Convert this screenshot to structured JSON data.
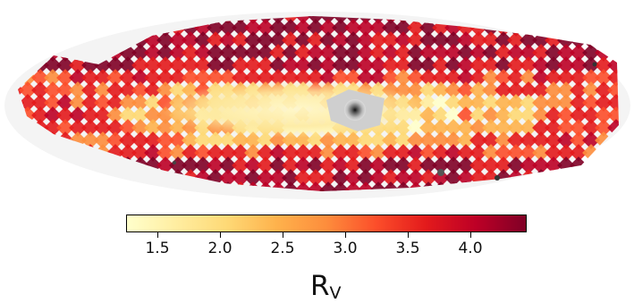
{
  "figure": {
    "colorbar": {
      "label_main": "R",
      "label_sub": "V",
      "min": 1.25,
      "max": 4.45,
      "ticks": [
        "1.5",
        "2.0",
        "2.5",
        "3.0",
        "3.5",
        "4.0"
      ],
      "colormap": [
        "#ffffcc",
        "#ffeda0",
        "#fed976",
        "#feb24c",
        "#fd8d3c",
        "#fc4e2a",
        "#e31a1c",
        "#bd0026",
        "#800026"
      ]
    }
  }
}
